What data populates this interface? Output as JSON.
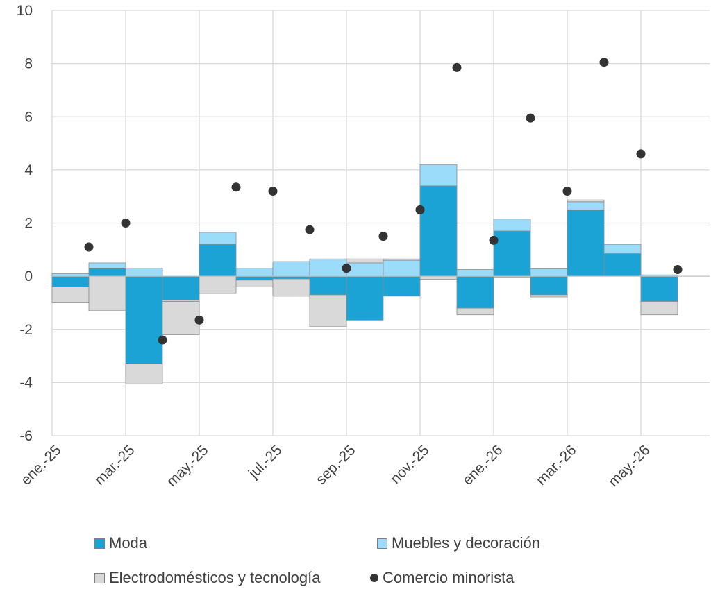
{
  "chart_data": {
    "type": "bar",
    "subtype": "stacked-bar-with-scatter",
    "categories": [
      "ene.-25",
      "feb.-25",
      "mar.-25",
      "abr.-25",
      "may.-25",
      "jun.-25",
      "jul.-25",
      "ago.-25",
      "sep.-25",
      "oct.-25",
      "nov.-25",
      "dic.-25",
      "ene.-26",
      "feb.-26",
      "mar.-26",
      "abr.-26",
      "may.-26"
    ],
    "x_tick_labels": [
      "ene.-25",
      "mar.-25",
      "may.-25",
      "jul.-25",
      "sep.-25",
      "nov.-25",
      "ene.-26",
      "mar.-26",
      "may.-26"
    ],
    "ylim": [
      -6,
      10
    ],
    "y_ticks": [
      -6,
      -4,
      -2,
      0,
      2,
      4,
      6,
      8,
      10
    ],
    "grid": true,
    "legend_position": "bottom",
    "series": [
      {
        "name": "Moda",
        "kind": "bar",
        "color": "#1aa3d4",
        "values": [
          -0.4,
          0.3,
          -3.3,
          -0.9,
          1.2,
          -0.15,
          -0.1,
          -0.7,
          -1.65,
          -0.75,
          3.4,
          -1.2,
          1.7,
          -0.7,
          2.5,
          0.85,
          -0.95
        ]
      },
      {
        "name": "Muebles y decoración",
        "kind": "bar",
        "color": "#9bdcfa",
        "values": [
          0.1,
          0.2,
          0.3,
          -0.05,
          0.45,
          0.3,
          0.55,
          0.65,
          0.5,
          0.6,
          0.8,
          0.25,
          0.45,
          0.28,
          0.3,
          0.35,
          0.05
        ]
      },
      {
        "name": "Electrodomésticos y tecnología",
        "kind": "bar",
        "color": "#d9d9d9",
        "values": [
          -0.6,
          -1.3,
          -0.75,
          -1.25,
          -0.65,
          -0.25,
          -0.65,
          -1.2,
          0.15,
          0.05,
          -0.12,
          -0.25,
          -0.03,
          -0.08,
          0.07,
          0.0,
          -0.5
        ]
      },
      {
        "name": "Comercio minorista",
        "kind": "scatter",
        "color": "#333333",
        "values": [
          1.1,
          2.0,
          -2.4,
          -1.65,
          3.35,
          3.2,
          1.75,
          0.3,
          1.5,
          2.5,
          7.85,
          1.35,
          5.95,
          3.2,
          8.05,
          4.6,
          0.25
        ]
      }
    ]
  }
}
